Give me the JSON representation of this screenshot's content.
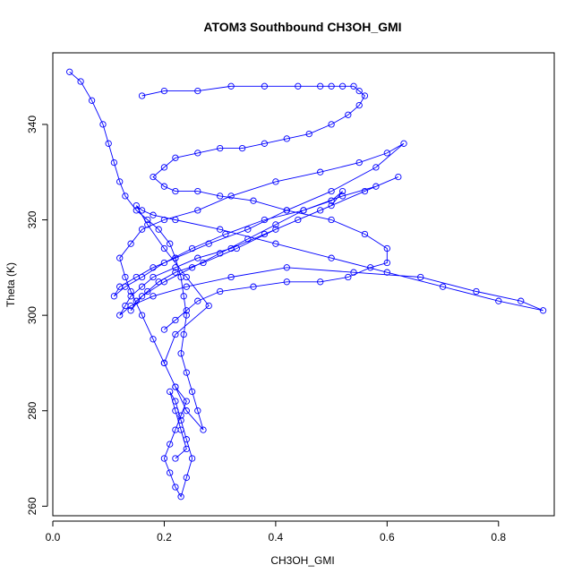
{
  "chart_data": {
    "type": "line",
    "title": "ATOM3 Southbound CH3OH_GMI",
    "xlabel": "CH3OH_GMI",
    "ylabel": "Theta (K)",
    "xlim": [
      0.0,
      0.9
    ],
    "ylim": [
      258,
      355
    ],
    "x_ticks": [
      0.0,
      0.2,
      0.4,
      0.6,
      0.8
    ],
    "x_tick_labels": [
      "0.0",
      "0.2",
      "0.4",
      "0.6",
      "0.8"
    ],
    "y_ticks": [
      260,
      280,
      300,
      320,
      340
    ],
    "y_tick_labels": [
      "260",
      "280",
      "300",
      "320",
      "340"
    ],
    "grid": false,
    "legend": "none",
    "series_color": "#0000ff",
    "marker": "open-circle",
    "series": [
      {
        "x": [
          0.03,
          0.05,
          0.07,
          0.09,
          0.1,
          0.11,
          0.12,
          0.13,
          0.15,
          0.17,
          0.19,
          0.21,
          0.22,
          0.23,
          0.235,
          0.24,
          0.235,
          0.23,
          0.24,
          0.25,
          0.26,
          0.27,
          0.24,
          0.22,
          0.2,
          0.18,
          0.16,
          0.14,
          0.13,
          0.12,
          0.14,
          0.16,
          0.2,
          0.26,
          0.32,
          0.4,
          0.48,
          0.55,
          0.6,
          0.63,
          0.58,
          0.5,
          0.42,
          0.35,
          0.28,
          0.22,
          0.18,
          0.15,
          0.12,
          0.11,
          0.13,
          0.16,
          0.2,
          0.25,
          0.31,
          0.38,
          0.45,
          0.52,
          0.58,
          0.62,
          0.56,
          0.48,
          0.4,
          0.33,
          0.27,
          0.22,
          0.19,
          0.17,
          0.15,
          0.14,
          0.16,
          0.2,
          0.25,
          0.3,
          0.35,
          0.4,
          0.45,
          0.5,
          0.52,
          0.5,
          0.44,
          0.38,
          0.32,
          0.26,
          0.22,
          0.18,
          0.16,
          0.14,
          0.13,
          0.12,
          0.14,
          0.18,
          0.24,
          0.32,
          0.42,
          0.54,
          0.66,
          0.76,
          0.84,
          0.88,
          0.8,
          0.7,
          0.6,
          0.5,
          0.4,
          0.3,
          0.22,
          0.18,
          0.16,
          0.15,
          0.17,
          0.2,
          0.24,
          0.28,
          0.22,
          0.2,
          0.22,
          0.24,
          0.23,
          0.22,
          0.21,
          0.2,
          0.21,
          0.22,
          0.23,
          0.24,
          0.25,
          0.24,
          0.23,
          0.22,
          0.21,
          0.22,
          0.23,
          0.24,
          0.22
        ],
        "y": [
          351,
          349,
          345,
          340,
          336,
          332,
          328,
          325,
          322,
          320,
          318,
          315,
          312,
          308,
          304,
          300,
          296,
          292,
          288,
          284,
          280,
          276,
          280,
          285,
          290,
          295,
          300,
          305,
          308,
          312,
          315,
          318,
          320,
          322,
          325,
          328,
          330,
          332,
          334,
          336,
          331,
          326,
          322,
          318,
          315,
          312,
          310,
          308,
          306,
          304,
          306,
          308,
          311,
          314,
          317,
          320,
          322,
          325,
          327,
          329,
          326,
          322,
          318,
          314,
          311,
          309,
          307,
          305,
          303,
          301,
          304,
          307,
          310,
          313,
          316,
          319,
          322,
          324,
          326,
          323,
          320,
          317,
          314,
          312,
          310,
          308,
          306,
          304,
          302,
          300,
          302,
          304,
          306,
          308,
          310,
          309,
          308,
          305,
          303,
          301,
          303,
          306,
          309,
          312,
          315,
          318,
          320,
          321,
          322,
          323,
          319,
          314,
          308,
          302,
          296,
          290,
          285,
          282,
          279,
          276,
          273,
          270,
          267,
          264,
          262,
          266,
          270,
          274,
          278,
          282,
          284,
          280,
          276,
          272,
          270
        ]
      },
      {
        "x": [
          0.16,
          0.2,
          0.26,
          0.32,
          0.38,
          0.44,
          0.48,
          0.5,
          0.52,
          0.54,
          0.55,
          0.56,
          0.55,
          0.53,
          0.5,
          0.46,
          0.42,
          0.38,
          0.34,
          0.3,
          0.26,
          0.22,
          0.2,
          0.18,
          0.2,
          0.22,
          0.26,
          0.3,
          0.36,
          0.42,
          0.5,
          0.56,
          0.6,
          0.6,
          0.57,
          0.53,
          0.48,
          0.42,
          0.36,
          0.3,
          0.26,
          0.24,
          0.22,
          0.2
        ],
        "y": [
          346,
          347,
          347,
          348,
          348,
          348,
          348,
          348,
          348,
          348,
          347,
          346,
          344,
          342,
          340,
          338,
          337,
          336,
          335,
          335,
          334,
          333,
          331,
          329,
          327,
          326,
          326,
          325,
          324,
          322,
          320,
          317,
          314,
          311,
          310,
          308,
          307,
          307,
          306,
          305,
          303,
          301,
          299,
          297
        ]
      }
    ]
  }
}
